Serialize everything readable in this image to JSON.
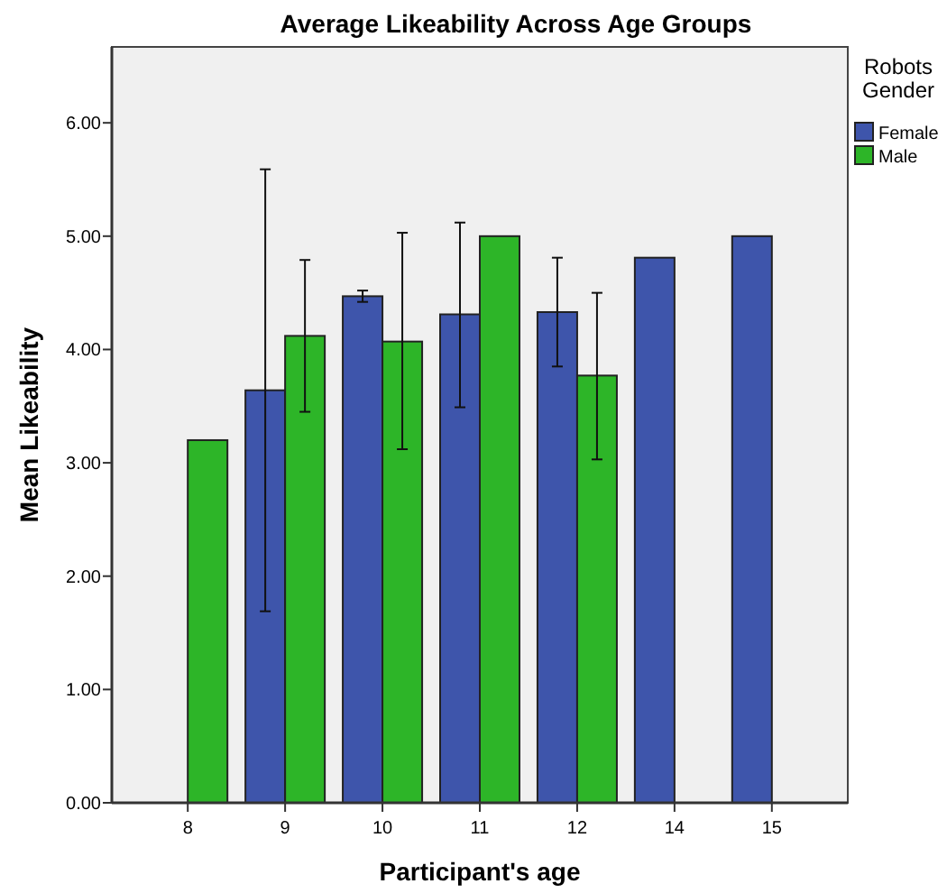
{
  "chart_data": {
    "type": "bar",
    "title": "Average Likeability Across Age Groups",
    "xlabel": "Participant's age",
    "ylabel": "Mean Likeability",
    "legend_title": "Robots Gender",
    "categories": [
      "8",
      "9",
      "10",
      "11",
      "12",
      "14",
      "15"
    ],
    "series": [
      {
        "name": "Female",
        "color": "#3e55ab",
        "values": [
          null,
          3.64,
          4.47,
          4.31,
          4.33,
          4.81,
          5.0
        ],
        "errors": [
          null,
          [
            1.69,
            5.59
          ],
          [
            4.42,
            4.52
          ],
          [
            3.49,
            5.12
          ],
          [
            3.85,
            4.81
          ],
          null,
          null
        ]
      },
      {
        "name": "Male",
        "color": "#2db528",
        "values": [
          3.2,
          4.12,
          4.07,
          5.0,
          3.77,
          null,
          null
        ],
        "errors": [
          null,
          [
            3.45,
            4.79
          ],
          [
            3.12,
            5.03
          ],
          null,
          [
            3.03,
            4.5
          ],
          null,
          null
        ]
      }
    ],
    "ylim": [
      0,
      6.67
    ],
    "yticks": [
      {
        "value": 0,
        "label": "0.00"
      },
      {
        "value": 1,
        "label": "1.00"
      },
      {
        "value": 2,
        "label": "2.00"
      },
      {
        "value": 3,
        "label": "3.00"
      },
      {
        "value": 4,
        "label": "4.00"
      },
      {
        "value": 5,
        "label": "5.00"
      },
      {
        "value": 6,
        "label": "6.00"
      }
    ],
    "grid": false,
    "legend": "top right"
  }
}
